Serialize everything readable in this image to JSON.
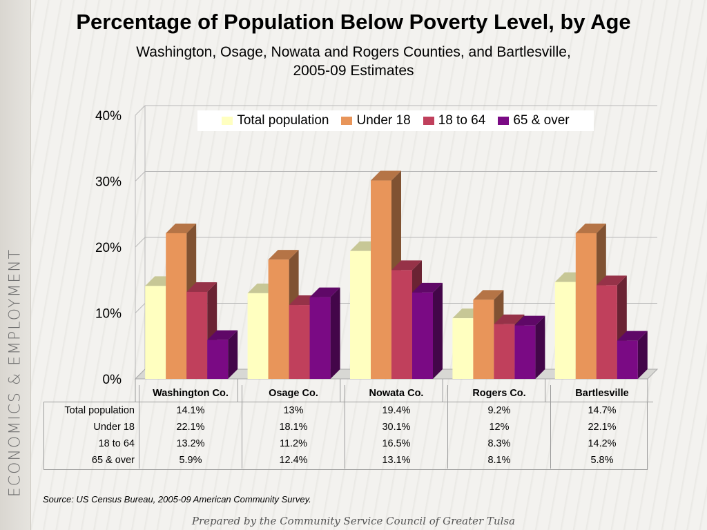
{
  "sidebar": {
    "label": "ECONOMICS & EMPLOYMENT"
  },
  "source": "Source:  US Census Bureau, 2005-09 American Community Survey.",
  "footer": "Prepared by the Community Service Council of Greater Tulsa",
  "chart_data": {
    "type": "bar",
    "title": "Percentage of Population Below Poverty Level, by Age",
    "subtitle_line1": "Washington, Osage, Nowata and Rogers Counties, and Bartlesville,",
    "subtitle_line2": "2005-09 Estimates",
    "categories": [
      "Washington Co.",
      "Osage Co.",
      "Nowata Co.",
      "Rogers Co.",
      "Bartlesville"
    ],
    "series": [
      {
        "name": "Total population",
        "values": [
          14.1,
          13,
          19.4,
          9.2,
          14.7
        ],
        "labels": [
          "14.1%",
          "13%",
          "19.4%",
          "9.2%",
          "14.7%"
        ],
        "color": "#ffffc0"
      },
      {
        "name": "Under 18",
        "values": [
          22.1,
          18.1,
          30.1,
          12,
          22.1
        ],
        "labels": [
          "22.1%",
          "18.1%",
          "30.1%",
          "12%",
          "22.1%"
        ],
        "color": "#e8955a"
      },
      {
        "name": "18 to 64",
        "values": [
          13.2,
          11.2,
          16.5,
          8.3,
          14.2
        ],
        "labels": [
          "13.2%",
          "11.2%",
          "16.5%",
          "8.3%",
          "14.2%"
        ],
        "color": "#c0405c"
      },
      {
        "name": "65 & over",
        "values": [
          5.9,
          12.4,
          13.1,
          8.1,
          5.8
        ],
        "labels": [
          "5.9%",
          "12.4%",
          "13.1%",
          "8.1%",
          "5.8%"
        ],
        "color": "#7a0a84"
      }
    ],
    "ylim": [
      0,
      40
    ],
    "yticks": [
      "0%",
      "10%",
      "20%",
      "30%",
      "40%"
    ],
    "legend_position": "top",
    "grid": true,
    "data_table": true
  }
}
